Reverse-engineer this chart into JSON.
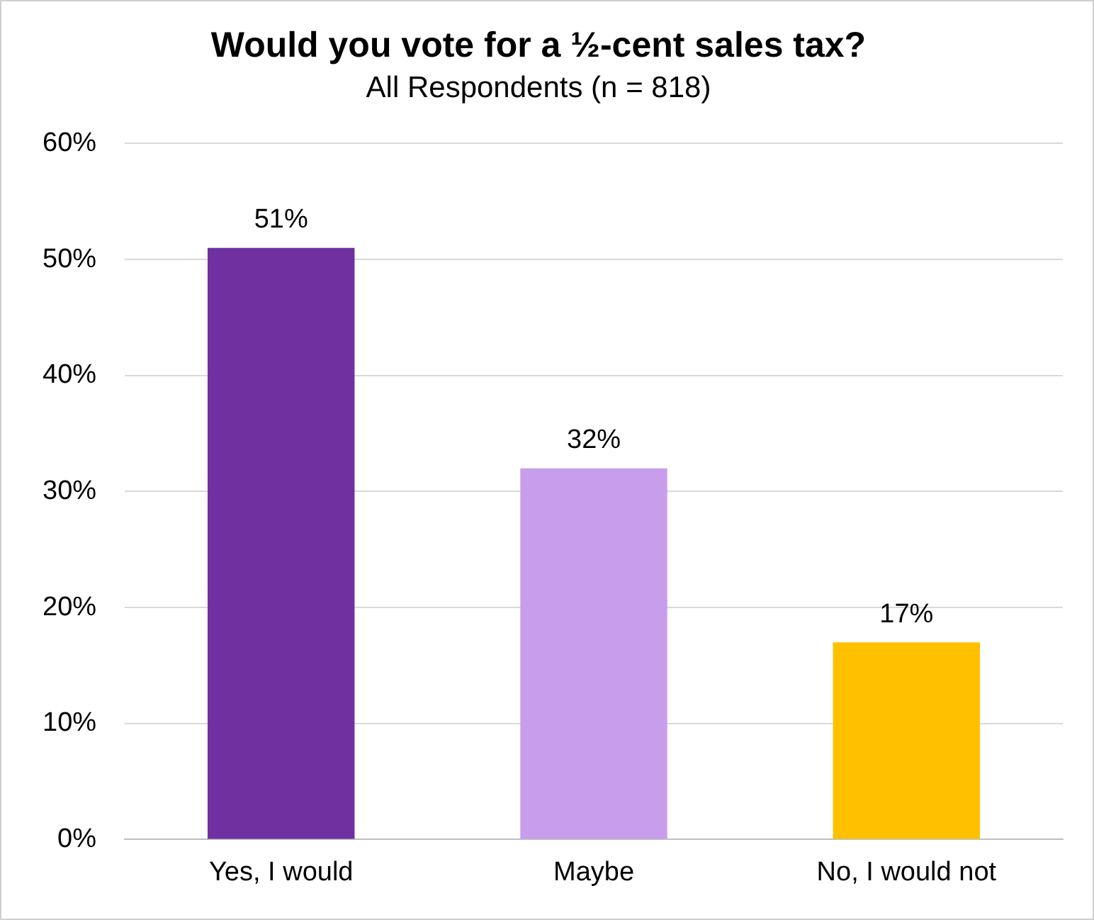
{
  "chart_data": {
    "type": "bar",
    "title": "Would you vote for a ½-cent sales tax?",
    "subtitle": "All Respondents (n = 818)",
    "categories": [
      "Yes, I would",
      "Maybe",
      "No, I would not"
    ],
    "values": [
      51,
      32,
      17
    ],
    "colors": [
      "#7030a0",
      "#c89eec",
      "#ffc000"
    ],
    "value_labels": [
      "51%",
      "32%",
      "17%"
    ],
    "ylim": [
      0,
      60
    ],
    "yticks": [
      {
        "value": 0,
        "label": "0%"
      },
      {
        "value": 10,
        "label": "10%"
      },
      {
        "value": 20,
        "label": "20%"
      },
      {
        "value": 30,
        "label": "30%"
      },
      {
        "value": 40,
        "label": "40%"
      },
      {
        "value": 50,
        "label": "50%"
      },
      {
        "value": 60,
        "label": "60%"
      }
    ],
    "grid": "y",
    "legend": false
  }
}
